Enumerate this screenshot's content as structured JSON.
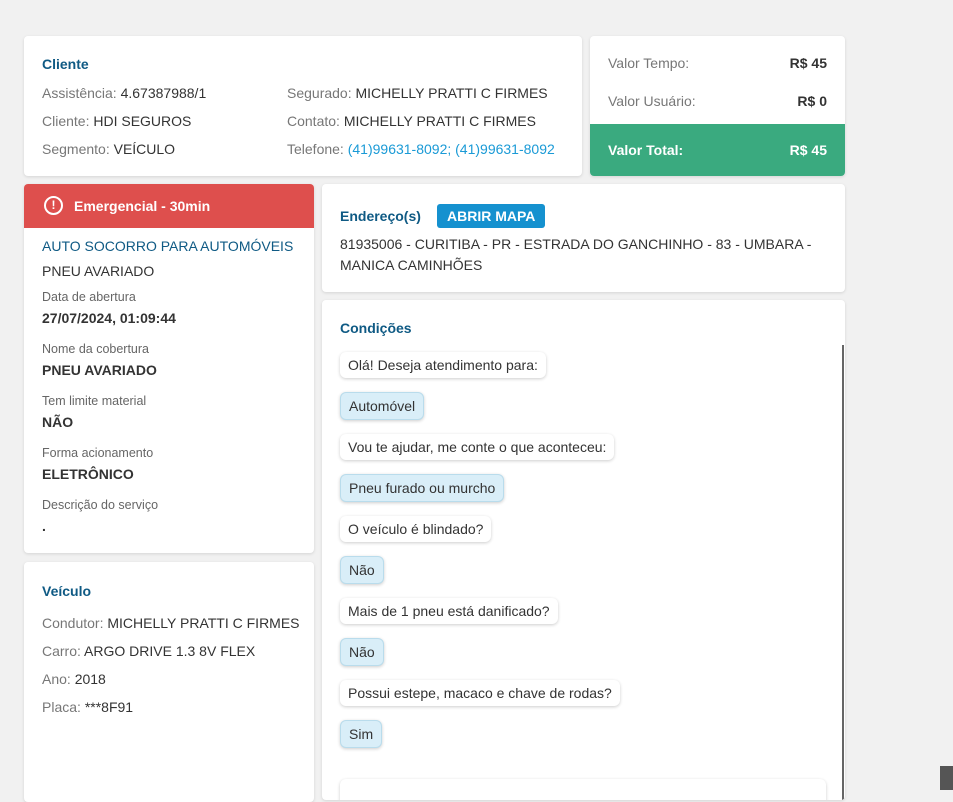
{
  "cliente": {
    "title": "Cliente",
    "assistencia_label": "Assistência:",
    "assistencia": "4.67387988/1",
    "cliente_label": "Cliente:",
    "cliente": "HDI SEGUROS",
    "segmento_label": "Segmento:",
    "segmento": "VEÍCULO",
    "segurado_label": "Segurado:",
    "segurado": "MICHELLY PRATTI C FIRMES",
    "contato_label": "Contato:",
    "contato": "MICHELLY PRATTI C FIRMES",
    "telefone_label": "Telefone:",
    "telefone": "(41)99631-8092; (41)99631-8092"
  },
  "valores": {
    "tempo_label": "Valor Tempo:",
    "tempo": "R$ 45",
    "usuario_label": "Valor Usuário:",
    "usuario": "R$ 0",
    "total_label": "Valor Total:",
    "total": "R$ 45",
    "total_color": "#3aaa7f"
  },
  "servico": {
    "badge": "Emergencial - 30min",
    "badge_color": "#de4f4d",
    "title": "AUTO SOCORRO PARA AUTOMÓVEIS",
    "subtitle": "PNEU AVARIADO",
    "fields": [
      {
        "label": "Data de abertura",
        "value": "27/07/2024, 01:09:44"
      },
      {
        "label": "Nome da cobertura",
        "value": "PNEU AVARIADO"
      },
      {
        "label": "Tem limite material",
        "value": "NÃO"
      },
      {
        "label": "Forma acionamento",
        "value": "ELETRÔNICO"
      },
      {
        "label": "Descrição do serviço",
        "value": "."
      }
    ]
  },
  "veiculo": {
    "title": "Veículo",
    "condutor_label": "Condutor:",
    "condutor": "MICHELLY PRATTI C FIRMES",
    "carro_label": "Carro:",
    "carro": "ARGO DRIVE 1.3 8V FLEX",
    "ano_label": "Ano:",
    "ano": "2018",
    "placa_label": "Placa:",
    "placa": "***8F91"
  },
  "endereco": {
    "title": "Endereço(s)",
    "button": "ABRIR MAPA",
    "line1": "81935006 - CURITIBA - PR - ESTRADA DO GANCHINHO - 83 - UMBARA -",
    "line2": "MANICA CAMINHÕES"
  },
  "condicoes": {
    "title": "Condições",
    "messages": [
      {
        "text": "Olá! Deseja atendimento para:",
        "answer": false
      },
      {
        "text": "Automóvel",
        "answer": true
      },
      {
        "text": "Vou te ajudar, me conte o que aconteceu:",
        "answer": false
      },
      {
        "text": "Pneu furado ou murcho",
        "answer": true
      },
      {
        "text": "O veículo é blindado?",
        "answer": false
      },
      {
        "text": "Não",
        "answer": true
      },
      {
        "text": "Mais de 1 pneu está danificado?",
        "answer": false
      },
      {
        "text": "Não",
        "answer": true
      },
      {
        "text": "Possui estepe, macaco e chave de rodas?",
        "answer": false
      },
      {
        "text": "Sim",
        "answer": true
      }
    ]
  }
}
